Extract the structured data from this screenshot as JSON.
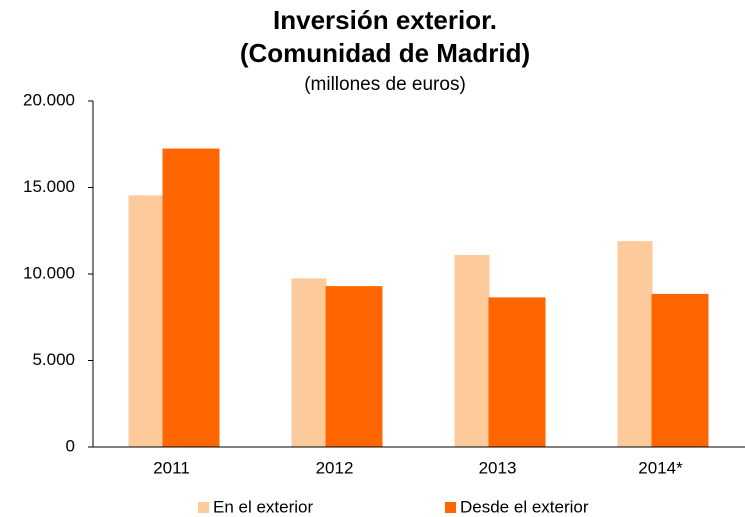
{
  "chart_data": {
    "type": "bar",
    "title": [
      "Inversión exterior.",
      "(Comunidad de Madrid)"
    ],
    "subtitle": "(millones de euros)",
    "categories": [
      "2011",
      "2012",
      "2013",
      "2014*"
    ],
    "series": [
      {
        "name": "En el exterior",
        "color": "#fdcb9b",
        "values": [
          14550,
          9750,
          11100,
          11900
        ]
      },
      {
        "name": "Desde el exterior",
        "color": "#ff6600",
        "values": [
          17250,
          9300,
          8650,
          8850
        ]
      }
    ],
    "ylim": [
      0,
      20000
    ],
    "yticks": [
      0,
      {
        "value": 5000,
        "label": "5.000"
      },
      {
        "value": 10000,
        "label": "10.000"
      },
      {
        "value": 15000,
        "label": "15.000"
      },
      {
        "value": 20000,
        "label": "20.000"
      }
    ],
    "grid": false,
    "legend": "bottom"
  }
}
